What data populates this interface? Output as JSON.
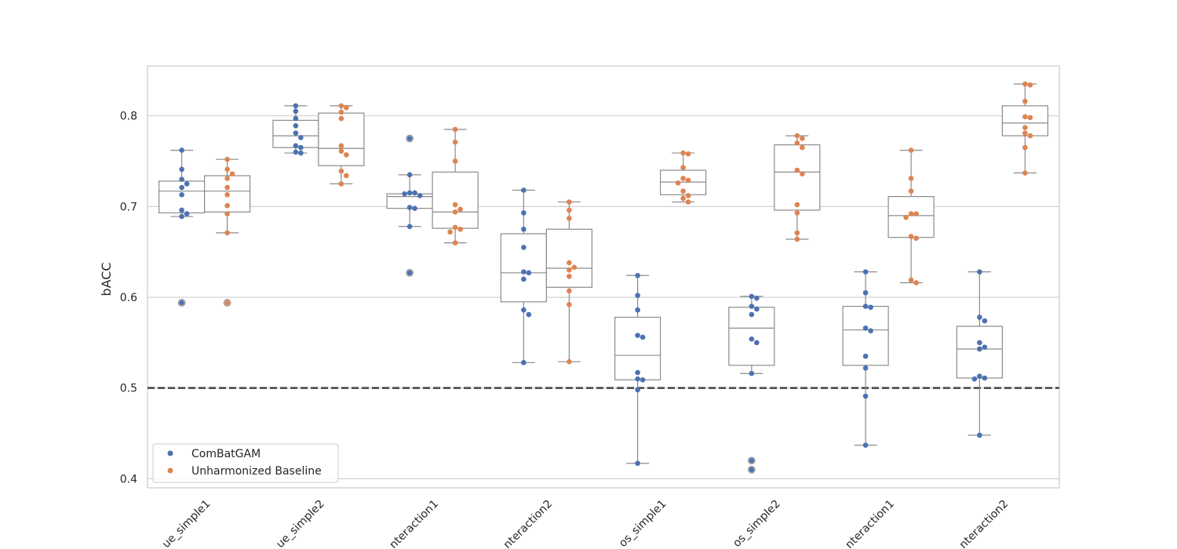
{
  "chart_data": {
    "type": "box-swarm",
    "ylabel": "bACC",
    "ylim": [
      0.39,
      0.855
    ],
    "yticks": [
      0.4,
      0.5,
      0.6,
      0.7,
      0.8
    ],
    "reference_line": 0.5,
    "grid": true,
    "legend_position": "lower-left",
    "categories": [
      "ue_simple1",
      "ue_simple2",
      "nteraction1",
      "nteraction2",
      "os_simple1",
      "os_simple2",
      "nteraction1",
      "nteraction2"
    ],
    "series": [
      {
        "name": "ComBatGAM",
        "color": "#4c72b0",
        "groups": [
          {
            "values": [
              0.762,
              0.741,
              0.73,
              0.725,
              0.721,
              0.713,
              0.696,
              0.692,
              0.689
            ],
            "box": {
              "min": 0.689,
              "q1": 0.693,
              "median": 0.717,
              "q3": 0.728,
              "max": 0.762
            },
            "outliers": [
              0.594
            ]
          },
          {
            "values": [
              0.811,
              0.805,
              0.797,
              0.789,
              0.781,
              0.776,
              0.767,
              0.765,
              0.76,
              0.759
            ],
            "box": {
              "min": 0.759,
              "q1": 0.765,
              "median": 0.778,
              "q3": 0.795,
              "max": 0.811
            },
            "outliers": []
          },
          {
            "values": [
              0.735,
              0.715,
              0.715,
              0.714,
              0.712,
              0.699,
              0.698,
              0.678
            ],
            "box": {
              "min": 0.678,
              "q1": 0.698,
              "median": 0.711,
              "q3": 0.714,
              "max": 0.735
            },
            "outliers": [
              0.775,
              0.627
            ]
          },
          {
            "values": [
              0.718,
              0.693,
              0.675,
              0.655,
              0.628,
              0.627,
              0.62,
              0.586,
              0.581,
              0.528
            ],
            "box": {
              "min": 0.528,
              "q1": 0.595,
              "median": 0.627,
              "q3": 0.67,
              "max": 0.718
            },
            "outliers": []
          },
          {
            "values": [
              0.624,
              0.602,
              0.586,
              0.558,
              0.556,
              0.517,
              0.51,
              0.509,
              0.498,
              0.417
            ],
            "box": {
              "min": 0.417,
              "q1": 0.509,
              "median": 0.536,
              "q3": 0.578,
              "max": 0.624
            },
            "outliers": []
          },
          {
            "values": [
              0.601,
              0.599,
              0.59,
              0.587,
              0.581,
              0.554,
              0.55,
              0.516
            ],
            "box": {
              "min": 0.516,
              "q1": 0.525,
              "median": 0.566,
              "q3": 0.589,
              "max": 0.601
            },
            "outliers": [
              0.42,
              0.41
            ]
          },
          {
            "values": [
              0.628,
              0.605,
              0.59,
              0.589,
              0.566,
              0.563,
              0.535,
              0.522,
              0.491,
              0.437
            ],
            "box": {
              "min": 0.437,
              "q1": 0.525,
              "median": 0.564,
              "q3": 0.59,
              "max": 0.628
            },
            "outliers": []
          },
          {
            "values": [
              0.628,
              0.578,
              0.574,
              0.55,
              0.545,
              0.543,
              0.513,
              0.511,
              0.51,
              0.448
            ],
            "box": {
              "min": 0.448,
              "q1": 0.511,
              "median": 0.543,
              "q3": 0.568,
              "max": 0.628
            },
            "outliers": []
          }
        ]
      },
      {
        "name": "Unharmonized Baseline",
        "color": "#dd8452",
        "groups": [
          {
            "values": [
              0.752,
              0.741,
              0.736,
              0.731,
              0.721,
              0.713,
              0.701,
              0.692,
              0.671
            ],
            "box": {
              "min": 0.671,
              "q1": 0.694,
              "median": 0.717,
              "q3": 0.734,
              "max": 0.752
            },
            "outliers": [
              0.594
            ]
          },
          {
            "values": [
              0.811,
              0.809,
              0.804,
              0.797,
              0.767,
              0.761,
              0.757,
              0.739,
              0.734,
              0.725
            ],
            "box": {
              "min": 0.725,
              "q1": 0.745,
              "median": 0.764,
              "q3": 0.803,
              "max": 0.811
            },
            "outliers": []
          },
          {
            "values": [
              0.785,
              0.771,
              0.75,
              0.702,
              0.697,
              0.694,
              0.677,
              0.675,
              0.672,
              0.66
            ],
            "box": {
              "min": 0.66,
              "q1": 0.676,
              "median": 0.694,
              "q3": 0.738,
              "max": 0.785
            },
            "outliers": []
          },
          {
            "values": [
              0.705,
              0.696,
              0.687,
              0.638,
              0.633,
              0.63,
              0.623,
              0.607,
              0.592,
              0.529
            ],
            "box": {
              "min": 0.529,
              "q1": 0.611,
              "median": 0.632,
              "q3": 0.675,
              "max": 0.705
            },
            "outliers": []
          },
          {
            "values": [
              0.759,
              0.758,
              0.743,
              0.731,
              0.729,
              0.726,
              0.717,
              0.712,
              0.709,
              0.705
            ],
            "box": {
              "min": 0.705,
              "q1": 0.713,
              "median": 0.727,
              "q3": 0.74,
              "max": 0.759
            },
            "outliers": []
          },
          {
            "values": [
              0.778,
              0.775,
              0.77,
              0.765,
              0.74,
              0.736,
              0.702,
              0.693,
              0.671,
              0.664
            ],
            "box": {
              "min": 0.664,
              "q1": 0.696,
              "median": 0.738,
              "q3": 0.768,
              "max": 0.778
            },
            "outliers": []
          },
          {
            "values": [
              0.762,
              0.731,
              0.717,
              0.692,
              0.692,
              0.688,
              0.667,
              0.665,
              0.619,
              0.616
            ],
            "box": {
              "min": 0.616,
              "q1": 0.666,
              "median": 0.69,
              "q3": 0.711,
              "max": 0.762
            },
            "outliers": []
          },
          {
            "values": [
              0.835,
              0.834,
              0.816,
              0.799,
              0.798,
              0.787,
              0.781,
              0.778,
              0.765,
              0.737
            ],
            "box": {
              "min": 0.737,
              "q1": 0.778,
              "median": 0.792,
              "q3": 0.811,
              "max": 0.835
            },
            "outliers": []
          }
        ]
      }
    ]
  }
}
